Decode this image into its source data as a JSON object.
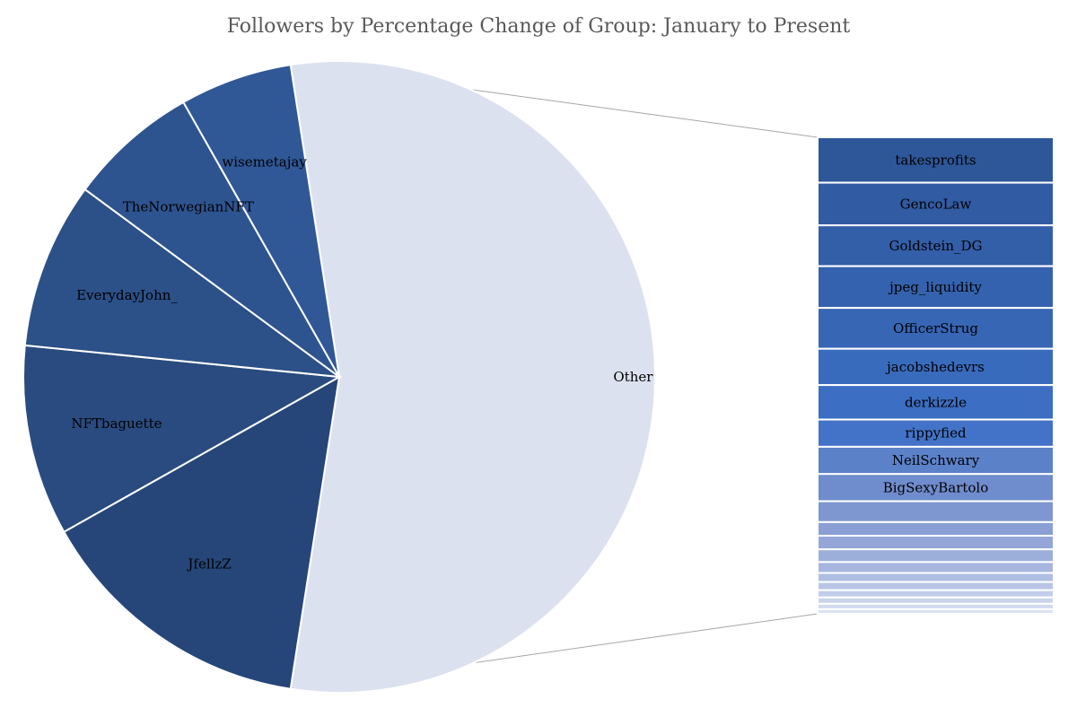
{
  "chart_data": {
    "type": "bar-of-pie",
    "title": "Followers by Percentage Change of Group: January to Present",
    "pie": {
      "slices": [
        {
          "label": "Other",
          "value": 53.5,
          "color": "#dce1f0"
        },
        {
          "label": "JfellzZ",
          "value": 14.0,
          "color": "#26467a"
        },
        {
          "label": "NFTbaguette",
          "value": 9.5,
          "color": "#294b80"
        },
        {
          "label": "EverydayJohn_",
          "value": 8.3,
          "color": "#2c5088"
        },
        {
          "label": "TheNorwegianNFT",
          "value": 6.5,
          "color": "#2e5490"
        },
        {
          "label": "wisemetajay",
          "value": 5.6,
          "color": "#305897"
        }
      ]
    },
    "bar": {
      "label_of_group": "Other",
      "segments": [
        {
          "label": "takesprofits",
          "value": 5.0,
          "color": "#2e579a"
        },
        {
          "label": "GencoLaw",
          "value": 4.7,
          "color": "#315ba2"
        },
        {
          "label": "Goldstein_DG",
          "value": 4.5,
          "color": "#335ea8"
        },
        {
          "label": "jpeg_liquidity",
          "value": 4.6,
          "color": "#3562ae"
        },
        {
          "label": "OfficerStrug",
          "value": 4.5,
          "color": "#3766b5"
        },
        {
          "label": "jacobshedevrs",
          "value": 4.0,
          "color": "#396bbc"
        },
        {
          "label": "derkizzle",
          "value": 3.8,
          "color": "#3c6ec3"
        },
        {
          "label": "rippyfied",
          "value": 3.0,
          "color": "#4273c8"
        },
        {
          "label": "NeilSchwary",
          "value": 3.0,
          "color": "#5b81c8"
        },
        {
          "label": "BigSexyBartolo",
          "value": 3.0,
          "color": "#6f8ccc"
        },
        {
          "label": "",
          "value": 2.3,
          "color": "#7f97d0"
        },
        {
          "label": "",
          "value": 1.5,
          "color": "#8a9fd4"
        },
        {
          "label": "",
          "value": 1.5,
          "color": "#93a6d7"
        },
        {
          "label": "",
          "value": 1.4,
          "color": "#9cafdb"
        },
        {
          "label": "",
          "value": 1.2,
          "color": "#a6b6df"
        },
        {
          "label": "",
          "value": 1.0,
          "color": "#afbee3"
        },
        {
          "label": "",
          "value": 0.9,
          "color": "#b8c5e6"
        },
        {
          "label": "",
          "value": 0.8,
          "color": "#c1cdea"
        },
        {
          "label": "",
          "value": 0.7,
          "color": "#cad4ed"
        },
        {
          "label": "",
          "value": 0.6,
          "color": "#d2dbf0"
        },
        {
          "label": "",
          "value": 0.5,
          "color": "#dbe2f3"
        }
      ]
    }
  }
}
